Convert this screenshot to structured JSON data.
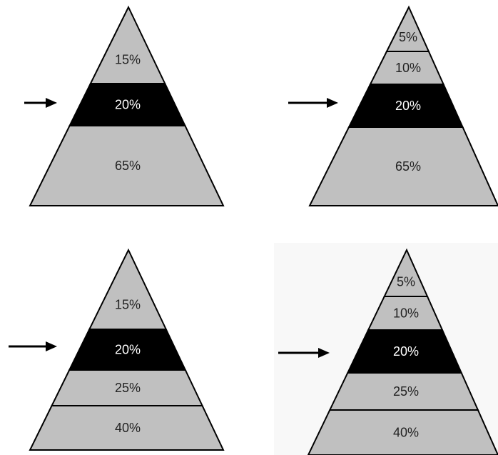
{
  "colors": {
    "background": "#ffffff",
    "gray_band": "#c0c0c0",
    "highlight_band": "#000000",
    "outline": "#000000",
    "label_on_gray": "#222222",
    "label_on_black": "#ffffff"
  },
  "pyramids": [
    {
      "name": "pyramid-top-left",
      "highlighted": "20%",
      "bands": [
        {
          "label": "15%",
          "fill": "gray"
        },
        {
          "label": "20%",
          "fill": "black"
        },
        {
          "label": "65%",
          "fill": "gray"
        }
      ]
    },
    {
      "name": "pyramid-top-right",
      "highlighted": "20%",
      "bands": [
        {
          "label": "5%",
          "fill": "gray"
        },
        {
          "label": "10%",
          "fill": "gray"
        },
        {
          "label": "20%",
          "fill": "black"
        },
        {
          "label": "65%",
          "fill": "gray"
        }
      ]
    },
    {
      "name": "pyramid-bottom-left",
      "highlighted": "20%",
      "bands": [
        {
          "label": "15%",
          "fill": "gray"
        },
        {
          "label": "20%",
          "fill": "black"
        },
        {
          "label": "25%",
          "fill": "gray"
        },
        {
          "label": "40%",
          "fill": "gray"
        }
      ]
    },
    {
      "name": "pyramid-bottom-right",
      "highlighted": "20%",
      "bands": [
        {
          "label": "5%",
          "fill": "gray"
        },
        {
          "label": "10%",
          "fill": "gray"
        },
        {
          "label": "20%",
          "fill": "black"
        },
        {
          "label": "25%",
          "fill": "gray"
        },
        {
          "label": "40%",
          "fill": "gray"
        }
      ]
    }
  ]
}
